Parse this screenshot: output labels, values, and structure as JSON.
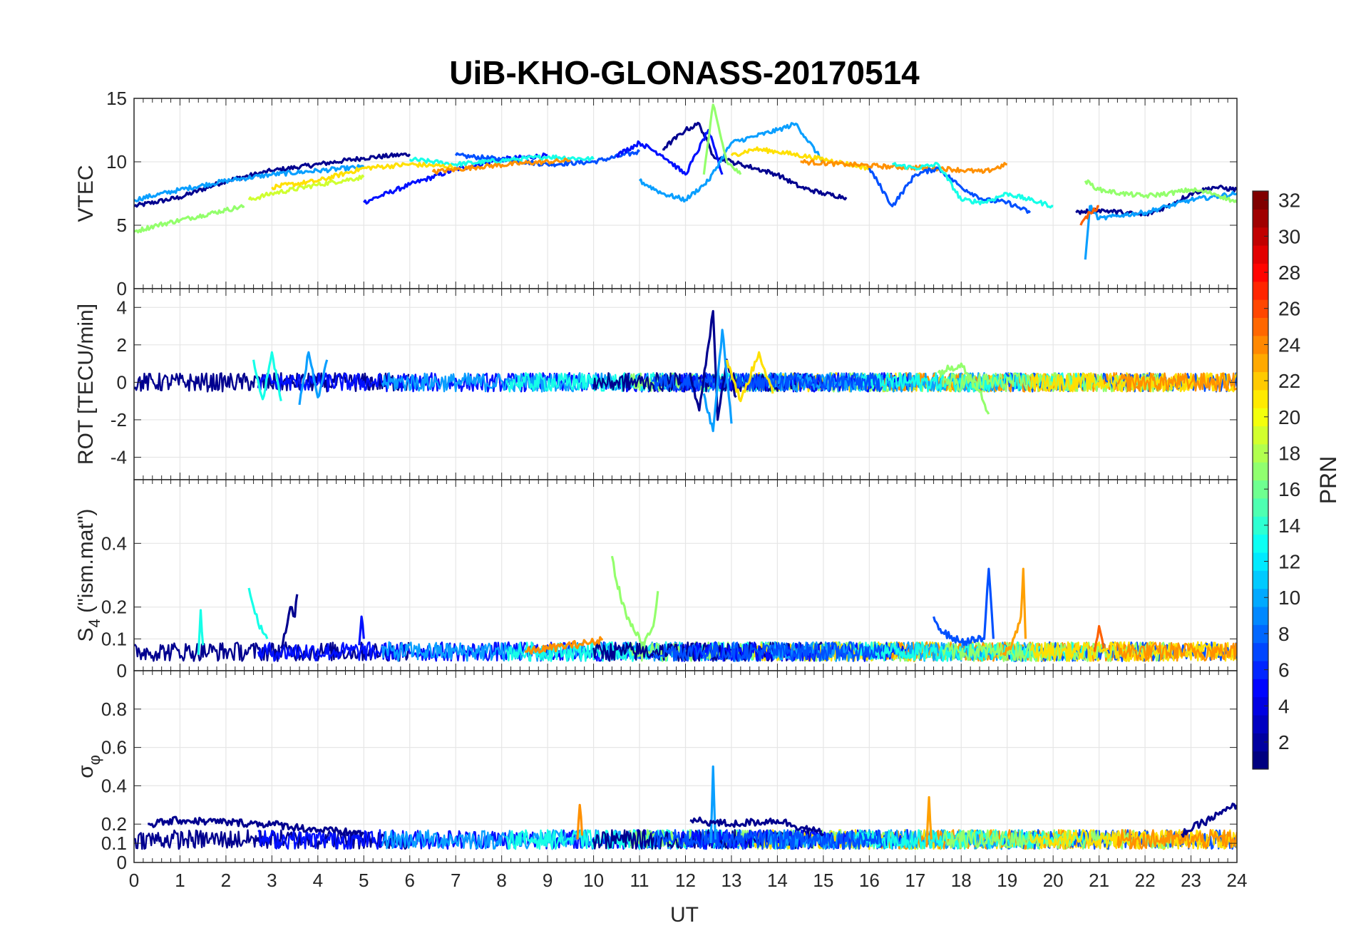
{
  "chart_data": [
    {
      "type": "line",
      "title": "UiB-KHO-GLONASS-20170514",
      "xlabel": "UT",
      "ylabel": "VTEC",
      "xlim": [
        0,
        24
      ],
      "ylim": [
        0,
        15
      ],
      "yticks": [
        0,
        5,
        10,
        15
      ],
      "grid": true,
      "series": [
        {
          "color": "#00008f",
          "x": [
            0,
            1,
            2,
            3,
            4,
            5,
            6
          ],
          "y": [
            6.5,
            7.2,
            8.5,
            9.3,
            9.8,
            10.3,
            10.6
          ]
        },
        {
          "color": "#0010ff",
          "x": [
            5,
            6,
            7,
            8,
            9
          ],
          "y": [
            6.8,
            8.2,
            9.4,
            10.2,
            10.5
          ]
        },
        {
          "color": "#0050ff",
          "x": [
            7,
            8,
            9,
            10,
            11
          ],
          "y": [
            10.5,
            10.2,
            9.8,
            10.0,
            10.8
          ]
        },
        {
          "color": "#0a9fff",
          "x": [
            0,
            1,
            2,
            3,
            4,
            5
          ],
          "y": [
            7.0,
            7.8,
            8.5,
            9.0,
            9.3,
            9.6
          ]
        },
        {
          "color": "#16ffe8",
          "x": [
            6,
            7,
            8,
            9,
            10
          ],
          "y": [
            10.2,
            9.8,
            10.1,
            10.4,
            10.2
          ]
        },
        {
          "color": "#93ff6c",
          "x": [
            0,
            0.5,
            1,
            1.5,
            2,
            2.4
          ],
          "y": [
            4.5,
            5.0,
            5.4,
            5.8,
            6.2,
            6.5
          ]
        },
        {
          "color": "#cfff30",
          "x": [
            2.5,
            3,
            4,
            5
          ],
          "y": [
            7.0,
            7.5,
            8.2,
            8.8
          ]
        },
        {
          "color": "#ffe000",
          "x": [
            3,
            4,
            5,
            6,
            7
          ],
          "y": [
            8.0,
            8.5,
            9.5,
            9.8,
            9.6
          ]
        },
        {
          "color": "#ff9000",
          "x": [
            6.5,
            7.5,
            8.5,
            9.5
          ],
          "y": [
            9.2,
            9.6,
            9.9,
            10.1
          ]
        },
        {
          "color": "#00008f",
          "x": [
            11.5,
            12,
            12.3,
            12.6,
            13,
            13.5,
            14,
            14.5,
            15,
            15.5
          ],
          "y": [
            11,
            12.5,
            13,
            10.5,
            10,
            9.5,
            9,
            8,
            7.5,
            7.2
          ]
        },
        {
          "color": "#0010ff",
          "x": [
            10.5,
            11,
            11.5,
            12,
            12.5,
            12.8
          ],
          "y": [
            10.5,
            11.5,
            10.5,
            9,
            12.5,
            9
          ]
        },
        {
          "color": "#0a9fff",
          "x": [
            11,
            11.5,
            12,
            12.5,
            13,
            13.5,
            14,
            14.4,
            15
          ],
          "y": [
            8.5,
            7.5,
            7.0,
            8.5,
            11.5,
            12,
            12.5,
            13,
            10
          ]
        },
        {
          "color": "#93ff6c",
          "x": [
            12.4,
            12.6,
            12.9,
            13.2
          ],
          "y": [
            9,
            14.5,
            10,
            9
          ]
        },
        {
          "color": "#ffe000",
          "x": [
            13,
            13.5,
            14,
            15,
            16
          ],
          "y": [
            10.5,
            11,
            10.8,
            10.2,
            9.5
          ]
        },
        {
          "color": "#ff9000",
          "x": [
            14.5,
            15.5,
            16.5,
            17.5,
            18.5,
            19
          ],
          "y": [
            10,
            9.8,
            9.6,
            9.5,
            9.2,
            9.8
          ]
        },
        {
          "color": "#0050ff",
          "x": [
            16,
            16.5,
            17,
            17.5,
            18,
            18.5,
            19,
            19.5
          ],
          "y": [
            9.5,
            6.5,
            9,
            9.5,
            8,
            7,
            6.8,
            6
          ]
        },
        {
          "color": "#16ffe8",
          "x": [
            16.5,
            17,
            17.5,
            18,
            18.5,
            19,
            19.5,
            20
          ],
          "y": [
            9.8,
            9.5,
            9.8,
            7.0,
            6.8,
            7.5,
            7.0,
            6.5
          ]
        },
        {
          "color": "#00008f",
          "x": [
            20.5,
            21,
            21.5,
            22,
            22.5,
            23,
            23.5,
            24
          ],
          "y": [
            6.0,
            6.2,
            6.0,
            5.8,
            6.5,
            7.5,
            8.0,
            7.8
          ]
        },
        {
          "color": "#0a9fff",
          "x": [
            20.7,
            20.8,
            21,
            21.5,
            22,
            22.5,
            23,
            24
          ],
          "y": [
            2.3,
            6.5,
            5.5,
            5.8,
            6.0,
            6.5,
            7.0,
            7.5
          ]
        },
        {
          "color": "#93ff6c",
          "x": [
            20.7,
            21,
            21.5,
            22,
            22.5,
            23,
            23.5,
            24
          ],
          "y": [
            8.5,
            7.8,
            7.5,
            7.3,
            7.5,
            7.8,
            7.5,
            6.8
          ]
        },
        {
          "color": "#ff6000",
          "x": [
            20.6,
            20.8,
            21
          ],
          "y": [
            5.0,
            6.0,
            6.5
          ]
        }
      ]
    },
    {
      "type": "line",
      "ylabel": "ROT [TECU/min]",
      "xlim": [
        0,
        24
      ],
      "ylim": [
        -5.2,
        5
      ],
      "yticks": [
        -4,
        -2,
        0,
        2,
        4
      ],
      "grid": true,
      "series": [
        {
          "color": "#00008f",
          "x": [
            12.1,
            12.3,
            12.5,
            12.6,
            12.7,
            12.9,
            13.1
          ],
          "y": [
            0.5,
            -1.5,
            2.0,
            3.8,
            -2.0,
            1.2,
            -0.8
          ]
        },
        {
          "color": "#0a9fff",
          "x": [
            12.4,
            12.6,
            12.8,
            13.0
          ],
          "y": [
            -0.6,
            -2.6,
            2.8,
            -2.2
          ]
        },
        {
          "color": "#16ffe8",
          "x": [
            2.6,
            2.8,
            3.0,
            3.2
          ],
          "y": [
            1.2,
            -0.9,
            1.6,
            -1.0
          ]
        },
        {
          "color": "#0a9fff",
          "x": [
            3.6,
            3.8,
            4.0,
            4.2
          ],
          "y": [
            -1.2,
            1.6,
            -0.8,
            1.2
          ]
        },
        {
          "color": "#93ff6c",
          "x": [
            17.5,
            18,
            18.4,
            18.6
          ],
          "y": [
            0.5,
            1.0,
            -0.5,
            -1.7
          ]
        },
        {
          "color": "#ffe000",
          "x": [
            12.9,
            13.2,
            13.6,
            13.9
          ],
          "y": [
            1.2,
            -1.0,
            1.6,
            -0.6
          ]
        }
      ],
      "noise_band": {
        "x": [
          0,
          24
        ],
        "y": [
          -0.5,
          0.5
        ]
      }
    },
    {
      "type": "line",
      "ylabel": "S_4 (\"ism.mat\")",
      "xlim": [
        0,
        24
      ],
      "ylim": [
        0,
        0.6
      ],
      "yticks": [
        0,
        0.1,
        0.2,
        0.4
      ],
      "grid": true,
      "series": [
        {
          "color": "#00008f",
          "x": [
            3.2,
            3.3,
            3.4,
            3.5,
            3.55
          ],
          "y": [
            0.07,
            0.12,
            0.2,
            0.17,
            0.24
          ]
        },
        {
          "color": "#16ffe8",
          "x": [
            2.5,
            2.6,
            2.7,
            2.8,
            2.9
          ],
          "y": [
            0.26,
            0.2,
            0.15,
            0.12,
            0.1
          ]
        },
        {
          "color": "#16ffe8",
          "x": [
            1.4,
            1.45,
            1.5
          ],
          "y": [
            0.05,
            0.19,
            0.08
          ]
        },
        {
          "color": "#0010ff",
          "x": [
            4.9,
            4.95,
            5.0
          ],
          "y": [
            0.08,
            0.17,
            0.1
          ]
        },
        {
          "color": "#93ff6c",
          "x": [
            10.4,
            10.5,
            10.7,
            10.9,
            11.1,
            11.3,
            11.4
          ],
          "y": [
            0.36,
            0.28,
            0.18,
            0.12,
            0.08,
            0.14,
            0.25
          ]
        },
        {
          "color": "#0050ff",
          "x": [
            17.4,
            17.6,
            18.0,
            18.5,
            18.6,
            18.7
          ],
          "y": [
            0.17,
            0.12,
            0.09,
            0.1,
            0.32,
            0.1
          ]
        },
        {
          "color": "#ffa000",
          "x": [
            18.9,
            19.1,
            19.3,
            19.35,
            19.4
          ],
          "y": [
            0.05,
            0.08,
            0.17,
            0.32,
            0.1
          ]
        },
        {
          "color": "#ff6000",
          "x": [
            20.9,
            21,
            21.1
          ],
          "y": [
            0.06,
            0.14,
            0.07
          ]
        },
        {
          "color": "#ff9000",
          "x": [
            8.5,
            9.0,
            9.5,
            10.0,
            10.2
          ],
          "y": [
            0.06,
            0.07,
            0.08,
            0.09,
            0.1
          ]
        }
      ],
      "noise_band": {
        "x": [
          0,
          24
        ],
        "y": [
          0.03,
          0.09
        ]
      }
    },
    {
      "type": "line",
      "ylabel": "σ_φ",
      "xlabel": "UT",
      "xlim": [
        0,
        24
      ],
      "ylim": [
        0,
        1
      ],
      "yticks": [
        0,
        0.1,
        0.2,
        0.4,
        0.6,
        0.8
      ],
      "xticks": [
        0,
        1,
        2,
        3,
        4,
        5,
        6,
        7,
        8,
        9,
        10,
        11,
        12,
        13,
        14,
        15,
        16,
        17,
        18,
        19,
        20,
        21,
        22,
        23,
        24
      ],
      "grid": true,
      "series": [
        {
          "color": "#00008f",
          "x": [
            0.3,
            1,
            2,
            3,
            4,
            5
          ],
          "y": [
            0.2,
            0.22,
            0.21,
            0.2,
            0.17,
            0.15
          ]
        },
        {
          "color": "#0a9fff",
          "x": [
            12.55,
            12.6,
            12.65
          ],
          "y": [
            0.1,
            0.5,
            0.12
          ]
        },
        {
          "color": "#ffa000",
          "x": [
            17.25,
            17.3,
            17.35
          ],
          "y": [
            0.1,
            0.34,
            0.12
          ]
        },
        {
          "color": "#ff9000",
          "x": [
            9.65,
            9.7,
            9.75
          ],
          "y": [
            0.12,
            0.3,
            0.14
          ]
        },
        {
          "color": "#00008f",
          "x": [
            12.1,
            13,
            14,
            15
          ],
          "y": [
            0.22,
            0.2,
            0.22,
            0.15
          ]
        },
        {
          "color": "#00008f",
          "x": [
            22.8,
            23.2,
            23.6,
            24
          ],
          "y": [
            0.15,
            0.2,
            0.25,
            0.3
          ]
        }
      ],
      "noise_band": {
        "x": [
          0,
          24
        ],
        "y": [
          0.07,
          0.17
        ]
      }
    }
  ],
  "colorbar": {
    "label": "PRN",
    "min": 1,
    "max": 32,
    "ticks": [
      2,
      4,
      6,
      8,
      10,
      12,
      14,
      16,
      18,
      20,
      22,
      24,
      26,
      28,
      30,
      32
    ],
    "colormap": "jet"
  }
}
